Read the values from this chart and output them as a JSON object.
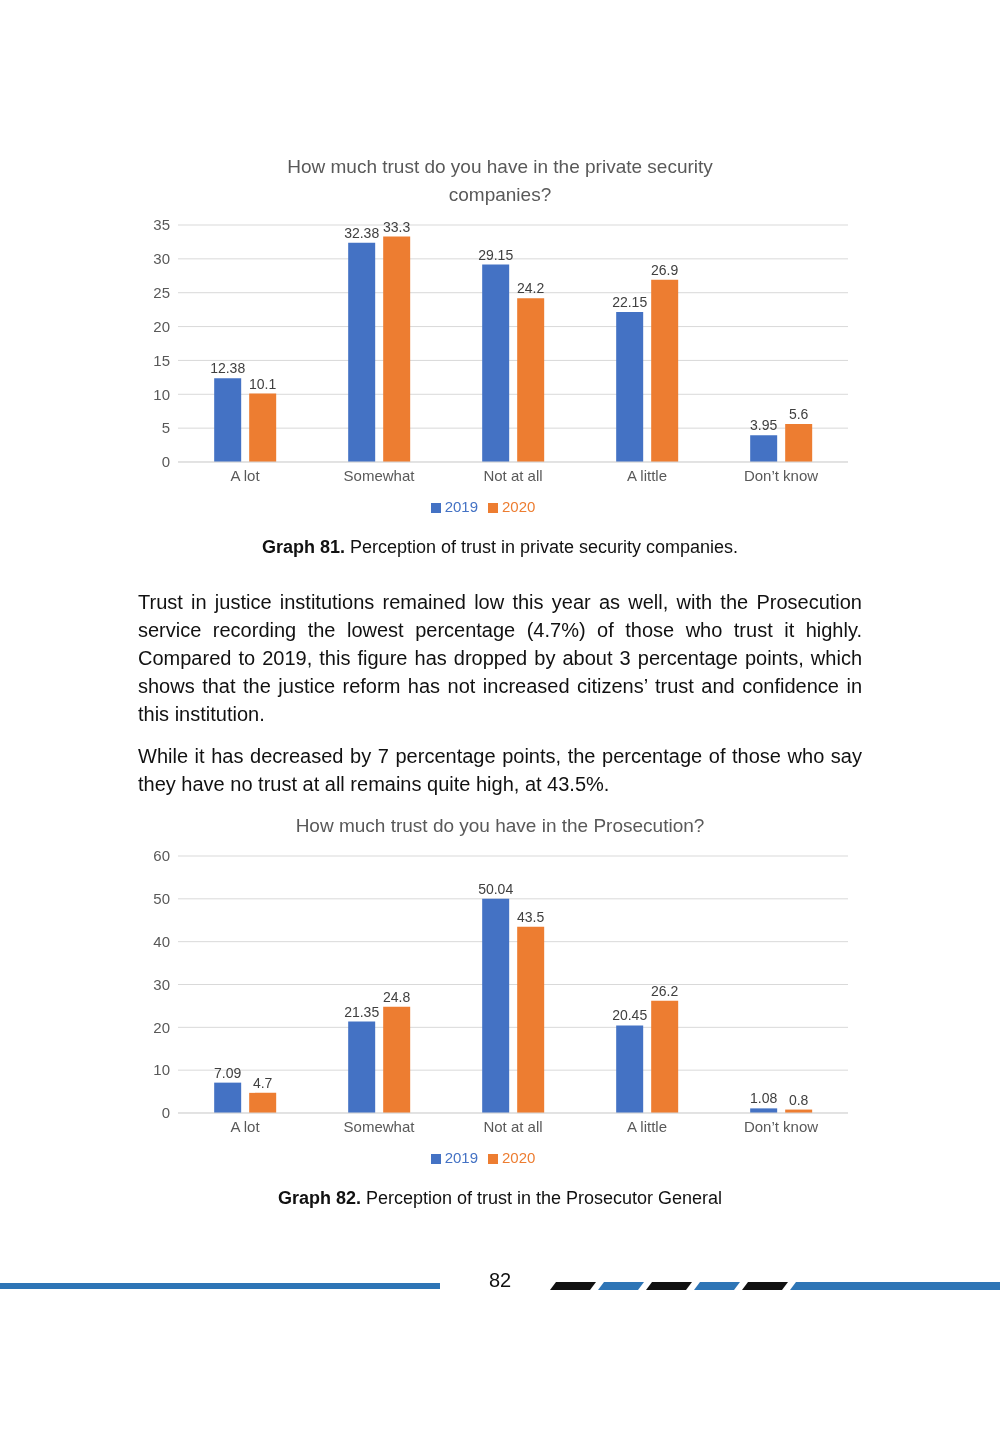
{
  "chart_data": [
    {
      "type": "bar",
      "title": "How much trust do you have in the private security companies?",
      "categories": [
        "A lot",
        "Somewhat",
        "Not at all",
        "A little",
        "Don’t know"
      ],
      "series": [
        {
          "name": "2019",
          "color": "#4472c4",
          "values": [
            12.38,
            32.38,
            29.15,
            22.15,
            3.95
          ]
        },
        {
          "name": "2020",
          "color": "#ed7d31",
          "values": [
            10.1,
            33.3,
            24.2,
            26.9,
            5.6
          ]
        }
      ],
      "ylim": [
        0,
        35
      ],
      "yticks": [
        0,
        5,
        10,
        15,
        20,
        25,
        30,
        35
      ],
      "grid": "y",
      "legend": "bottom",
      "data_labels": true,
      "annotations": [
        "Graph 81. Perception of trust in private security companies.",
        "Trust in justice institutions remained low this year as well, with the Prosecution service recording the lowest percentage (4.7%) of those who trust it highly. Compared to 2019, this figure has dropped by about 3 percentage points, which shows that the justice reform has not increased citizens’ trust and confidence in this institution.",
        "While it has decreased by 7 percentage points, the percentage of those who say they have no trust at all remains quite high, at 43.5%."
      ]
    },
    {
      "type": "bar",
      "title": "How much trust do you have in the Prosecution?",
      "categories": [
        "A lot",
        "Somewhat",
        "Not at all",
        "A little",
        "Don’t know"
      ],
      "series": [
        {
          "name": "2019",
          "color": "#4472c4",
          "values": [
            7.09,
            21.35,
            50.04,
            20.45,
            1.08
          ]
        },
        {
          "name": "2020",
          "color": "#ed7d31",
          "values": [
            4.7,
            24.8,
            43.5,
            26.2,
            0.8
          ]
        }
      ],
      "ylim": [
        0,
        60
      ],
      "yticks": [
        0,
        10,
        20,
        30,
        40,
        50,
        60
      ],
      "grid": "y",
      "legend": "bottom",
      "data_labels": true,
      "annotations": [
        "Graph 82. Perception of trust in the Prosecutor General",
        "82"
      ]
    }
  ]
}
